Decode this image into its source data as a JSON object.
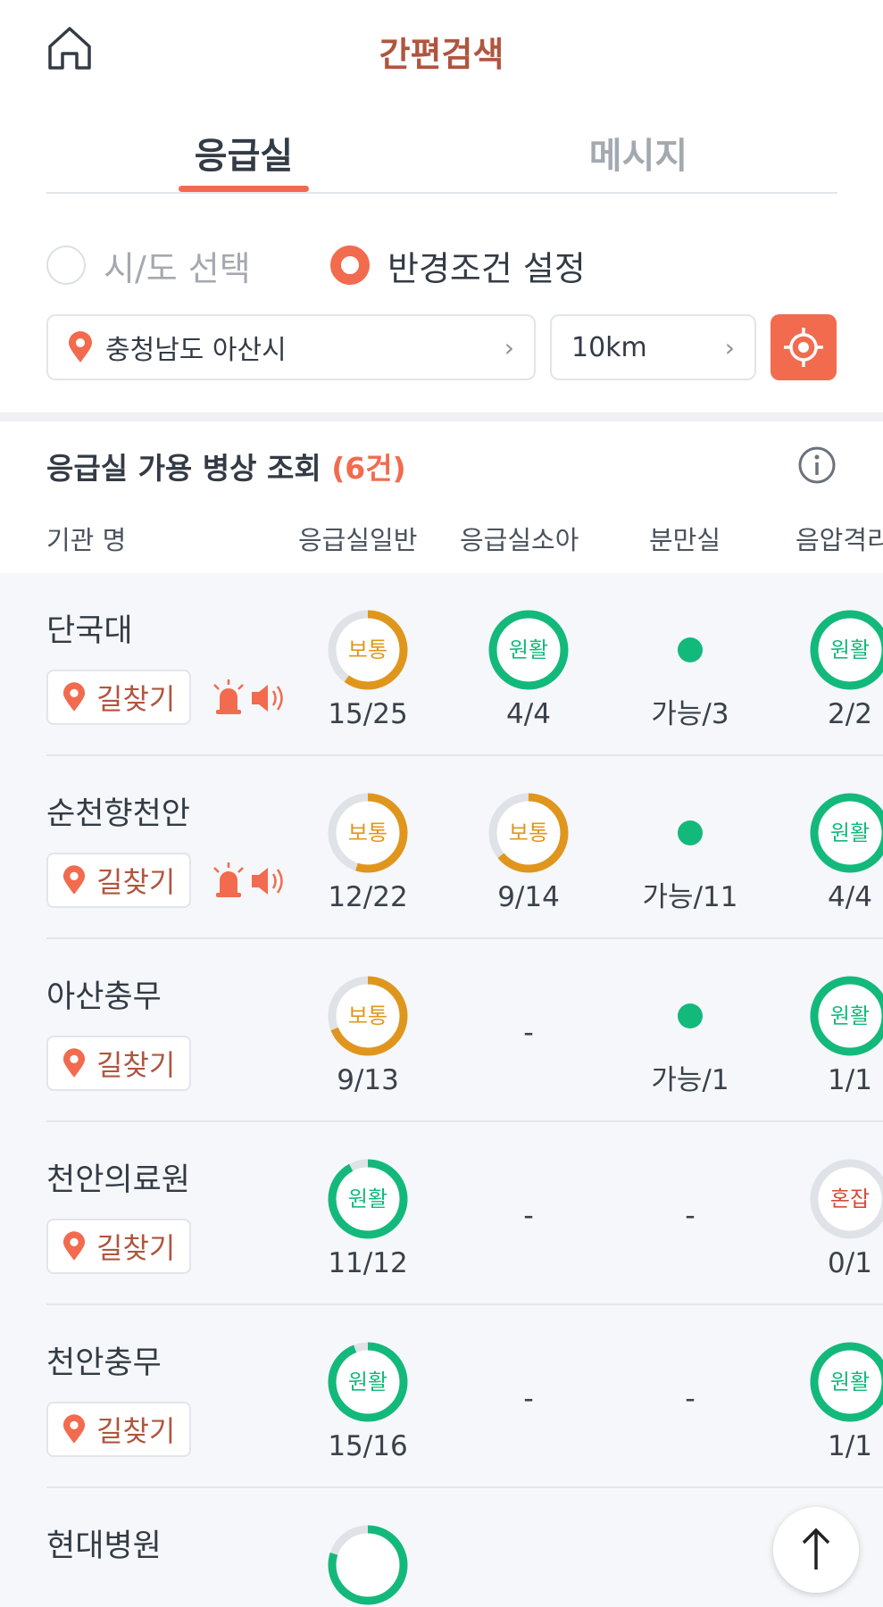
{
  "header": {
    "title": "간편검색",
    "home_icon": "home-icon"
  },
  "tabs": [
    {
      "label": "응급실",
      "active": true
    },
    {
      "label": "메시지",
      "active": false
    }
  ],
  "search_mode": {
    "options": [
      {
        "label": "시/도 선택",
        "selected": false
      },
      {
        "label": "반경조건 설정",
        "selected": true
      }
    ]
  },
  "filters": {
    "location": "충청남도 아산시",
    "radius": "10km",
    "gps_icon": "crosshair-icon"
  },
  "section": {
    "title": "응급실 가용 병상 조회",
    "count": "(6건)"
  },
  "columns": [
    "기관 명",
    "응급실일반",
    "응급실소아",
    "분만실",
    "음압격리"
  ],
  "route_label": "길찾기",
  "colors": {
    "accent": "#f26b4f",
    "good": "#13b97b",
    "normal": "#e0961c",
    "busy": "#d84a3a",
    "track": "#dfe2e7"
  },
  "rows": [
    {
      "name": "단국대",
      "alerts": true,
      "cells": [
        {
          "type": "ring",
          "status": "보통",
          "level": "normal",
          "fill": 0.6,
          "value": "15/25"
        },
        {
          "type": "ring",
          "status": "원활",
          "level": "good",
          "fill": 1,
          "value": "4/4"
        },
        {
          "type": "dot",
          "value": "가능/3"
        },
        {
          "type": "ring",
          "status": "원활",
          "level": "good",
          "fill": 1,
          "value": "2/2"
        }
      ]
    },
    {
      "name": "순천향천안",
      "alerts": true,
      "cells": [
        {
          "type": "ring",
          "status": "보통",
          "level": "normal",
          "fill": 0.55,
          "value": "12/22"
        },
        {
          "type": "ring",
          "status": "보통",
          "level": "normal",
          "fill": 0.64,
          "value": "9/14"
        },
        {
          "type": "dot",
          "value": "가능/11"
        },
        {
          "type": "ring",
          "status": "원활",
          "level": "good",
          "fill": 1,
          "value": "4/4"
        }
      ]
    },
    {
      "name": "아산충무",
      "alerts": false,
      "cells": [
        {
          "type": "ring",
          "status": "보통",
          "level": "normal",
          "fill": 0.69,
          "value": "9/13"
        },
        {
          "type": "dash",
          "value": "-"
        },
        {
          "type": "dot",
          "value": "가능/1"
        },
        {
          "type": "ring",
          "status": "원활",
          "level": "good",
          "fill": 1,
          "value": "1/1"
        }
      ]
    },
    {
      "name": "천안의료원",
      "alerts": false,
      "cells": [
        {
          "type": "ring",
          "status": "원활",
          "level": "good",
          "fill": 0.92,
          "value": "11/12"
        },
        {
          "type": "dash",
          "value": "-"
        },
        {
          "type": "dash",
          "value": "-"
        },
        {
          "type": "ring",
          "status": "혼잡",
          "level": "busy",
          "fill": 0,
          "value": "0/1"
        }
      ]
    },
    {
      "name": "천안충무",
      "alerts": false,
      "cells": [
        {
          "type": "ring",
          "status": "원활",
          "level": "good",
          "fill": 0.94,
          "value": "15/16"
        },
        {
          "type": "dash",
          "value": "-"
        },
        {
          "type": "dash",
          "value": "-"
        },
        {
          "type": "ring",
          "status": "원활",
          "level": "good",
          "fill": 1,
          "value": "1/1"
        }
      ]
    },
    {
      "name": "현대병원",
      "alerts": false,
      "cells": [
        {
          "type": "ring",
          "status": "",
          "level": "good",
          "fill": 0.8,
          "value": ""
        }
      ]
    }
  ]
}
